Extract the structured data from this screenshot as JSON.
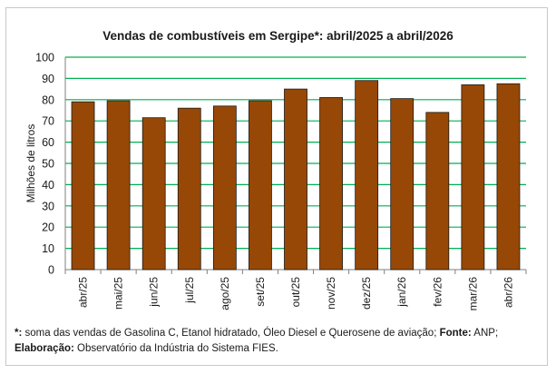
{
  "chart_data": {
    "type": "bar",
    "title": "Vendas de combustíveis em Sergipe*: abril/2025 a abril/2026",
    "ylabel": "Milhões de litros",
    "xlabel": "",
    "categories": [
      "abr/25",
      "mai/25",
      "jun/25",
      "jul/25",
      "ago/25",
      "set/25",
      "out/25",
      "nov/25",
      "dez/25",
      "jan/26",
      "fev/26",
      "mar/26",
      "abr/26"
    ],
    "values": [
      79,
      79.5,
      71.5,
      76,
      77,
      79.5,
      85,
      81,
      89,
      80.5,
      74,
      87,
      87.5
    ],
    "ylim": [
      0,
      100
    ],
    "yticks": [
      0,
      10,
      20,
      30,
      40,
      50,
      60,
      70,
      80,
      90,
      100
    ],
    "grid": true,
    "colors": {
      "bar": "#974806",
      "bar_border": "#1a1a1a",
      "grid": "#00b050"
    }
  },
  "footnote": {
    "line1_marker": "*:",
    "line1_text": " soma das vendas de Gasolina C, Etanol hidratado, Óleo Diesel e Querosene de aviação; ",
    "line1_source_label": "Fonte:",
    "line1_source": " ANP;",
    "line2_label": "Elaboração:",
    "line2_text": " Observatório da Indústria do Sistema FIES."
  }
}
